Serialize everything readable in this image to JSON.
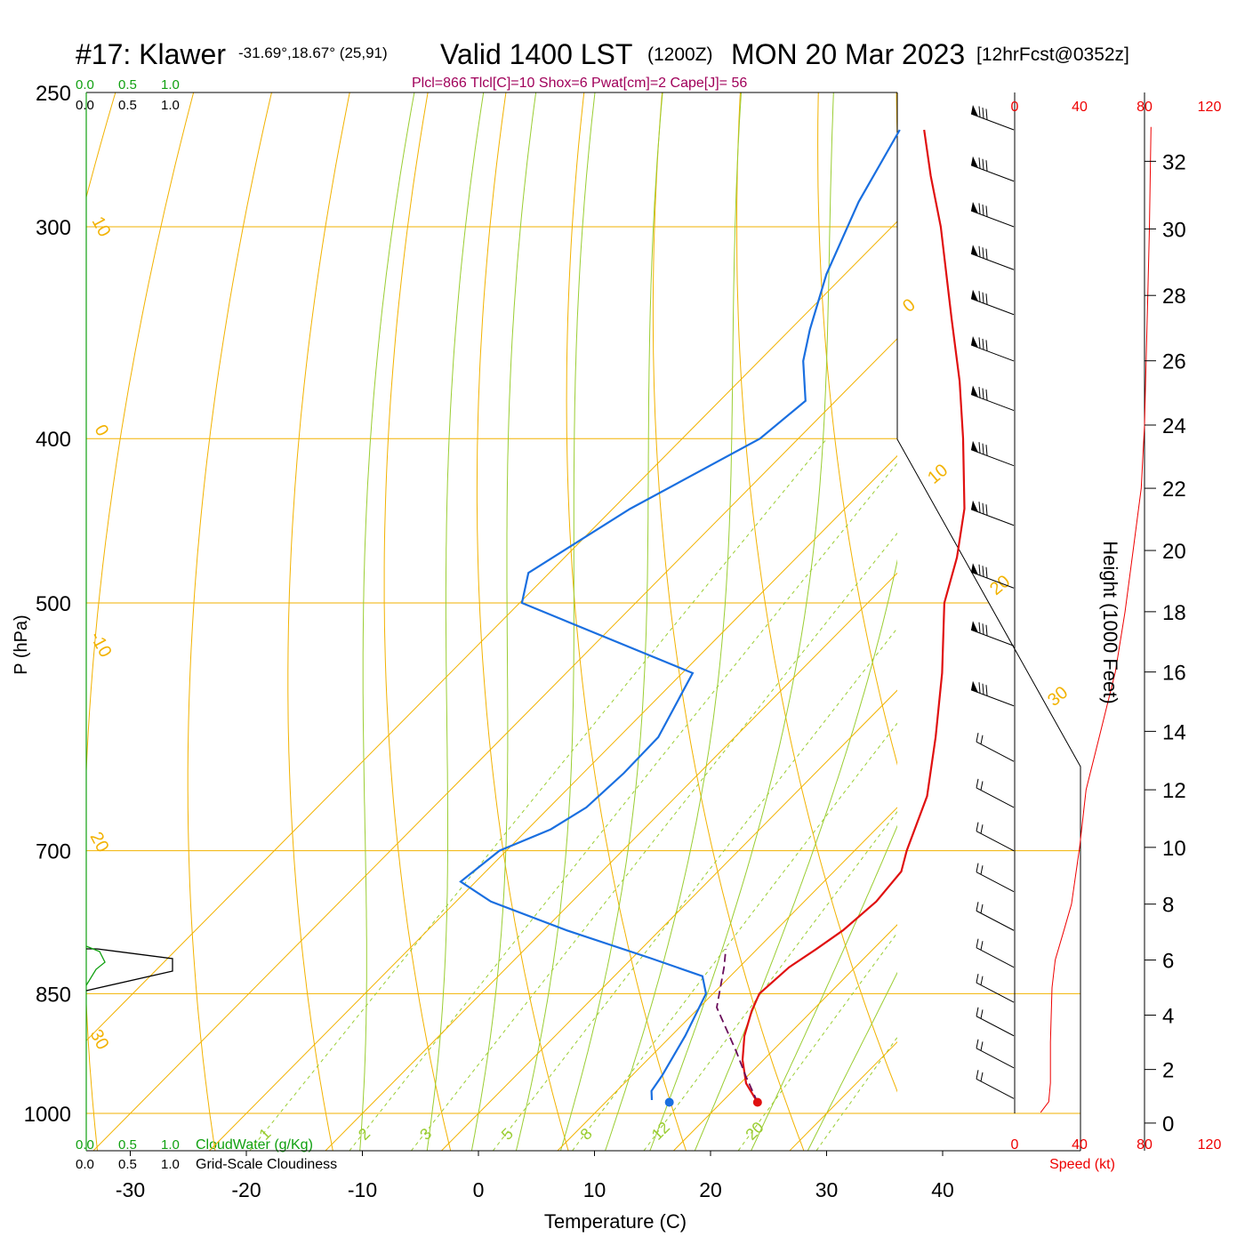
{
  "header": {
    "station": "#17: Klawer",
    "coords": "-31.69°,18.67° (25,91)",
    "valid_label": "Valid 1400 LST",
    "utc_label": "(1200Z)",
    "date_label": "MON 20 Mar 2023",
    "forecast_label": "[12hrFcst@0352z]",
    "indices": "Plcl=866 Tlcl[C]=10 Shox=6 Pwat[cm]=2 Cape[J]= 56"
  },
  "colors": {
    "isobar": "#f2b200",
    "dry_adiabat": "#f2b200",
    "moist_adiabat": "#9acd32",
    "mixing_ratio": "#9acd32",
    "temperature": "#e01010",
    "dewpoint": "#1a6fe0",
    "parcel": "#6a0d5a",
    "cloud": "#10a010",
    "header_magenta": "#a0005a",
    "speed": "#ee0000"
  },
  "chart_data": {
    "type": "skew-t",
    "xlabel": "Temperature (C)",
    "ylabel": "P (hPa)",
    "x_ticks": [
      "-30",
      "-20",
      "-10",
      "0",
      "10",
      "20",
      "30",
      "40"
    ],
    "p_ticks": [
      "250",
      "300",
      "400",
      "500",
      "700",
      "850",
      "1000"
    ],
    "temperature": [
      {
        "p": 985,
        "t": 23.1
      },
      {
        "p": 960,
        "t": 20.5
      },
      {
        "p": 930,
        "t": 18.2
      },
      {
        "p": 900,
        "t": 16.3
      },
      {
        "p": 870,
        "t": 14.8
      },
      {
        "p": 850,
        "t": 14.0
      },
      {
        "p": 820,
        "t": 14.3
      },
      {
        "p": 800,
        "t": 15.1
      },
      {
        "p": 780,
        "t": 15.8
      },
      {
        "p": 750,
        "t": 16.2
      },
      {
        "p": 720,
        "t": 15.8
      },
      {
        "p": 700,
        "t": 14.5
      },
      {
        "p": 650,
        "t": 11.6
      },
      {
        "p": 600,
        "t": 7.3
      },
      {
        "p": 550,
        "t": 2.4
      },
      {
        "p": 500,
        "t": -3.4
      },
      {
        "p": 470,
        "t": -6.2
      },
      {
        "p": 440,
        "t": -9.7
      },
      {
        "p": 400,
        "t": -15.8
      },
      {
        "p": 370,
        "t": -21.0
      },
      {
        "p": 340,
        "t": -27.0
      },
      {
        "p": 300,
        "t": -35.8
      },
      {
        "p": 280,
        "t": -41.0
      },
      {
        "p": 263,
        "t": -45.5
      }
    ],
    "dewpoint": [
      {
        "p": 982,
        "t": 13.8
      },
      {
        "p": 970,
        "t": 13.0
      },
      {
        "p": 950,
        "t": 12.6
      },
      {
        "p": 900,
        "t": 11.2
      },
      {
        "p": 850,
        "t": 9.4
      },
      {
        "p": 830,
        "t": 7.6
      },
      {
        "p": 810,
        "t": 1.6
      },
      {
        "p": 780,
        "t": -8.0
      },
      {
        "p": 750,
        "t": -17.0
      },
      {
        "p": 730,
        "t": -21.3
      },
      {
        "p": 700,
        "t": -20.6
      },
      {
        "p": 680,
        "t": -18.0
      },
      {
        "p": 660,
        "t": -16.8
      },
      {
        "p": 630,
        "t": -16.5
      },
      {
        "p": 600,
        "t": -16.6
      },
      {
        "p": 550,
        "t": -19.1
      },
      {
        "p": 500,
        "t": -39.8
      },
      {
        "p": 480,
        "t": -41.8
      },
      {
        "p": 440,
        "t": -38.5
      },
      {
        "p": 400,
        "t": -33.3
      },
      {
        "p": 380,
        "t": -32.6
      },
      {
        "p": 360,
        "t": -36.2
      },
      {
        "p": 345,
        "t": -38.3
      },
      {
        "p": 320,
        "t": -41.6
      },
      {
        "p": 290,
        "t": -45.0
      },
      {
        "p": 263,
        "t": -47.6
      }
    ],
    "parcel": [
      {
        "p": 985,
        "t": 23.1
      },
      {
        "p": 950,
        "t": 19.8
      },
      {
        "p": 920,
        "t": 17.0
      },
      {
        "p": 866,
        "t": 11.5
      },
      {
        "p": 820,
        "t": 8.7
      },
      {
        "p": 800,
        "t": 7.3
      }
    ],
    "surface_points": {
      "temperature": 23.1,
      "dewpoint": 15.5
    },
    "dry_adiabats": [
      {
        "theta": 350,
        "label": ""
      },
      {
        "theta": 340,
        "label": ""
      },
      {
        "theta": 330,
        "label": "30"
      },
      {
        "theta": 320,
        "label": "20"
      },
      {
        "theta": 310,
        "label": "10"
      },
      {
        "theta": 300,
        "label": "0"
      },
      {
        "theta": 290,
        "label": "10"
      },
      {
        "theta": 280,
        "label": "0"
      },
      {
        "theta": 270,
        "label": "-10"
      },
      {
        "theta": 260,
        "label": "20"
      },
      {
        "theta": 250,
        "label": "30"
      },
      {
        "theta": 240,
        "label": ""
      },
      {
        "theta": 230,
        "label": ""
      },
      {
        "theta": 220,
        "label": ""
      }
    ],
    "moist_adiabats": [
      {
        "t1000": 30
      },
      {
        "t1000": 25
      },
      {
        "t1000": 20
      },
      {
        "t1000": 16
      },
      {
        "t1000": 12
      },
      {
        "t1000": 8
      },
      {
        "t1000": 4
      },
      {
        "t1000": 0
      },
      {
        "t1000": -4
      },
      {
        "t1000": -10
      }
    ],
    "mixing_ratios": [
      {
        "w": 1,
        "label": "1"
      },
      {
        "w": 2,
        "label": "2"
      },
      {
        "w": 3,
        "label": "3"
      },
      {
        "w": 5,
        "label": "5"
      },
      {
        "w": 8,
        "label": "8"
      },
      {
        "w": 12,
        "label": "12"
      },
      {
        "w": 20,
        "label": "20"
      },
      {
        "w": 30,
        "label": ""
      }
    ],
    "wind_barbs": [
      {
        "p": 263
      },
      {
        "p": 282
      },
      {
        "p": 300
      },
      {
        "p": 318
      },
      {
        "p": 338
      },
      {
        "p": 360
      },
      {
        "p": 385
      },
      {
        "p": 415
      },
      {
        "p": 450
      },
      {
        "p": 490
      },
      {
        "p": 530
      },
      {
        "p": 575
      },
      {
        "p": 620
      },
      {
        "p": 660
      },
      {
        "p": 700
      },
      {
        "p": 740
      },
      {
        "p": 780
      },
      {
        "p": 820
      },
      {
        "p": 860
      },
      {
        "p": 900
      },
      {
        "p": 940
      },
      {
        "p": 980
      }
    ],
    "speed_axis": {
      "label": "Speed (kt)",
      "ticks": [
        "0",
        "40",
        "80",
        "120"
      ],
      "profile_kt": [
        {
          "h": 0.4,
          "v": 16
        },
        {
          "h": 0.8,
          "v": 21
        },
        {
          "h": 1.5,
          "v": 22
        },
        {
          "h": 3,
          "v": 22
        },
        {
          "h": 5,
          "v": 23
        },
        {
          "h": 6,
          "v": 25
        },
        {
          "h": 7,
          "v": 30
        },
        {
          "h": 8,
          "v": 35
        },
        {
          "h": 10,
          "v": 40
        },
        {
          "h": 12,
          "v": 44
        },
        {
          "h": 14,
          "v": 53
        },
        {
          "h": 16,
          "v": 62
        },
        {
          "h": 18,
          "v": 68
        },
        {
          "h": 20,
          "v": 73
        },
        {
          "h": 22,
          "v": 78
        },
        {
          "h": 24,
          "v": 80
        },
        {
          "h": 26,
          "v": 81
        },
        {
          "h": 28,
          "v": 82
        },
        {
          "h": 30,
          "v": 83
        },
        {
          "h": 33,
          "v": 84
        }
      ]
    },
    "height_axis": {
      "label": "Height (1000 Feet)",
      "ticks": [
        "0",
        "2",
        "4",
        "6",
        "8",
        "10",
        "12",
        "14",
        "16",
        "18",
        "20",
        "22",
        "24",
        "26",
        "28",
        "30",
        "32"
      ]
    },
    "cloud_scales": {
      "cloud_water_label": "CloudWater (g/Kg)",
      "cloudiness_label": "Grid-Scale Cloudiness",
      "ticks": [
        "0.0",
        "0.5",
        "1.0"
      ]
    }
  }
}
